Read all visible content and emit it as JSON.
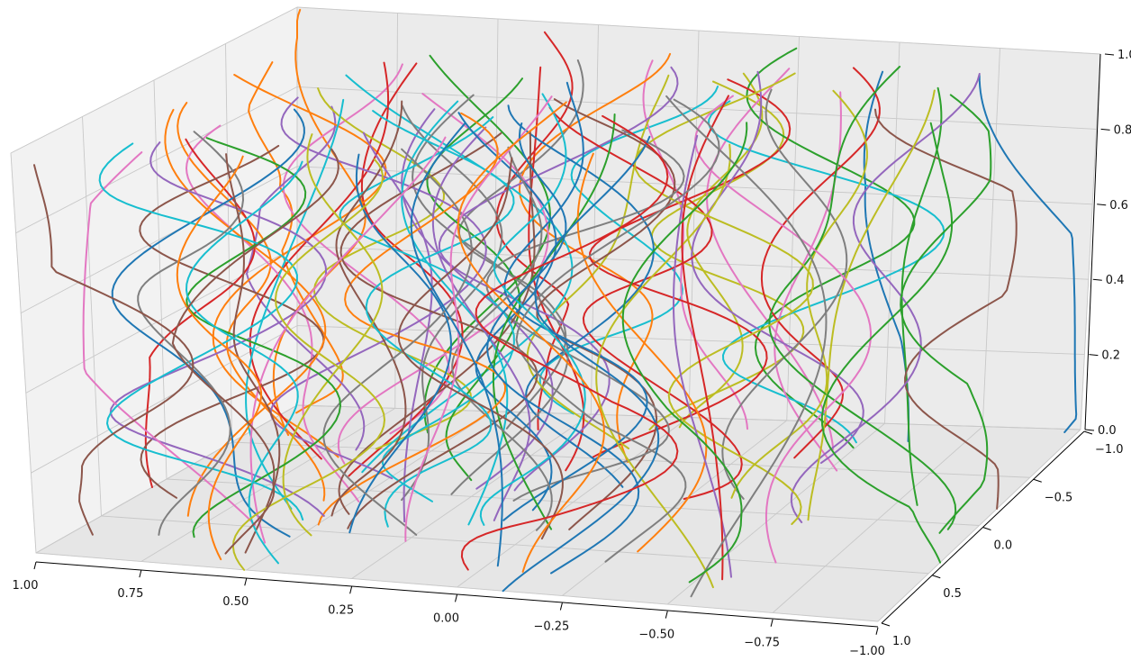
{
  "chart_data": {
    "type": "line3d",
    "title": "",
    "xlabel": "",
    "ylabel": "",
    "zlabel": "",
    "xlim": [
      -1.0,
      1.0
    ],
    "ylim": [
      -1.0,
      1.0
    ],
    "zlim": [
      0.0,
      1.0
    ],
    "grid": true,
    "legend": "none",
    "series_count": 100,
    "x_ticks": [
      "1.00",
      "0.75",
      "0.50",
      "0.25",
      "0.00",
      "−0.25",
      "−0.50",
      "−0.75",
      "−1.00"
    ],
    "y_ticks": [
      "−1.0",
      "−0.5",
      "0.0",
      "0.5",
      "1.0"
    ],
    "z_ticks": [
      "0.0",
      "0.2",
      "0.4",
      "0.6",
      "0.8",
      "1.0"
    ],
    "color_cycle": [
      "#1f77b4",
      "#ff7f0e",
      "#2ca02c",
      "#d62728",
      "#9467bd",
      "#8c564b",
      "#e377c2",
      "#7f7f7f",
      "#bcbd22",
      "#17becf"
    ]
  }
}
